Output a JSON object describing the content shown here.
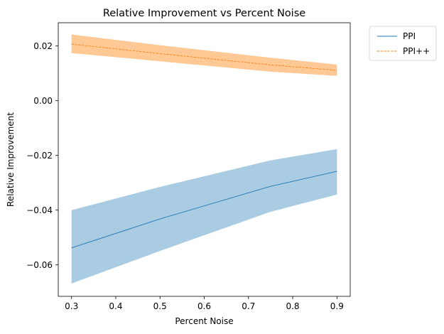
{
  "chart_data": {
    "type": "line",
    "title": "Relative Improvement vs Percent Noise",
    "xlabel": "Percent Noise",
    "ylabel": "Relative Improvement",
    "xlim": [
      0.27,
      0.93
    ],
    "ylim": [
      -0.0715,
      0.0285
    ],
    "xticks": [
      0.3,
      0.4,
      0.5,
      0.6,
      0.7,
      0.8,
      0.9
    ],
    "xtick_labels": [
      "0.3",
      "0.4",
      "0.5",
      "0.6",
      "0.7",
      "0.8",
      "0.9"
    ],
    "yticks": [
      0.02,
      0.0,
      -0.02,
      -0.04,
      -0.06
    ],
    "ytick_labels": [
      "0.02",
      "0.00",
      "−0.02",
      "−0.04",
      "−0.06"
    ],
    "grid": false,
    "legend_placement": "outside-top-right",
    "x": [
      0.3,
      0.5,
      0.75,
      0.9
    ],
    "series": [
      {
        "name": "PPI",
        "line_style": "solid",
        "color": "#1f77b4",
        "band_color": "#a9cce3",
        "values": [
          -0.0538,
          -0.0432,
          -0.0313,
          -0.0258
        ],
        "lower": [
          -0.0668,
          -0.0549,
          -0.0406,
          -0.0343
        ],
        "upper": [
          -0.04,
          -0.0315,
          -0.0218,
          -0.0177
        ]
      },
      {
        "name": "PPI++",
        "line_style": "dashed",
        "color": "#ff7f0e",
        "band_color": "#ffc996",
        "values": [
          0.0207,
          0.0172,
          0.0131,
          0.0111
        ],
        "lower": [
          0.0174,
          0.0144,
          0.0106,
          0.0091
        ],
        "upper": [
          0.0242,
          0.0203,
          0.0157,
          0.0132
        ]
      }
    ]
  }
}
